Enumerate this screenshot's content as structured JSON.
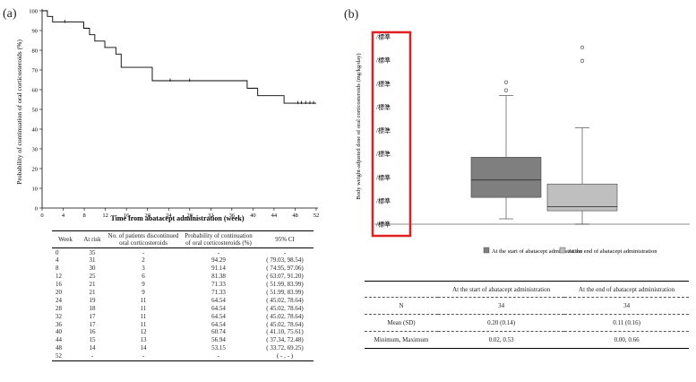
{
  "panel_a_label": "(a)",
  "panel_b_label": "(b)",
  "km_table": {
    "headers": [
      "Week",
      "At risk",
      "No. of patients discontinued oral corticosteroids",
      "Probability of continuation of oral corticosteroids (%)",
      "95% CI"
    ],
    "rows": [
      [
        "0",
        "35",
        "-",
        "-",
        "-"
      ],
      [
        "4",
        "31",
        "2",
        "94.29",
        "( 79.03, 98.54)"
      ],
      [
        "8",
        "30",
        "3",
        "91.14",
        "( 74.95, 97.06)"
      ],
      [
        "12",
        "25",
        "6",
        "81.38",
        "( 63.07, 91.20)"
      ],
      [
        "16",
        "21",
        "9",
        "71.33",
        "( 51.99, 83.99)"
      ],
      [
        "20",
        "21",
        "9",
        "71.33",
        "( 51.99, 83.99)"
      ],
      [
        "24",
        "19",
        "11",
        "64.54",
        "( 45.02, 78.64)"
      ],
      [
        "28",
        "18",
        "11",
        "64.54",
        "( 45.02, 78.64)"
      ],
      [
        "32",
        "17",
        "11",
        "64.54",
        "( 45.02, 78.64)"
      ],
      [
        "36",
        "17",
        "11",
        "64.54",
        "( 45.02, 78.64)"
      ],
      [
        "40",
        "16",
        "12",
        "60.74",
        "( 41.10, 75.61)"
      ],
      [
        "44",
        "15",
        "13",
        "56.94",
        "( 37.34, 72.48)"
      ],
      [
        "48",
        "14",
        "14",
        "53.15",
        "( 33.72, 69.25)"
      ],
      [
        "52",
        "-",
        "-",
        "-",
        "( - , - )"
      ]
    ]
  },
  "boxplot_table": {
    "headers": [
      "",
      "At the start of abatacept administration",
      "At the end of abatacept administration"
    ],
    "rows": [
      [
        "N",
        "34",
        "34"
      ],
      [
        "Mean (SD)",
        "0.20  (0.14)",
        "0.11 (0.16)"
      ],
      [
        "Minimum, Maximum",
        "0.02, 0.53",
        "0.00, 0.66"
      ]
    ]
  },
  "chart_data": [
    {
      "type": "line",
      "subtype": "kaplan-meier-step",
      "title": "",
      "xlabel": "Time from abatacept administration (week)",
      "ylabel": "Probability of continuation of oral corticosteroids (%)",
      "xlim": [
        0,
        52
      ],
      "ylim": [
        0,
        100
      ],
      "x_ticks": [
        "0",
        "4",
        "8",
        "12",
        "16",
        "20",
        "24",
        "28",
        "32",
        "36",
        "40",
        "44",
        "48",
        "52"
      ],
      "y_ticks": [
        "0",
        "10",
        "20",
        "30",
        "40",
        "50",
        "60",
        "70",
        "80",
        "90",
        "100"
      ],
      "series": [
        {
          "name": "Probability of continuation",
          "x": [
            0,
            1.0,
            2.0,
            7.9,
            9.0,
            10.0,
            11.9,
            14.0,
            15.0,
            20.9,
            38.9,
            40.9,
            45.9,
            52
          ],
          "y": [
            100,
            97.14,
            94.29,
            91.14,
            87.89,
            84.63,
            81.38,
            78.03,
            71.33,
            64.54,
            60.74,
            56.94,
            53.15,
            53.15
          ]
        }
      ],
      "censor_marks": {
        "x": [
          4.3,
          24.3,
          28.0,
          48.5,
          49.2,
          50.0,
          50.8,
          51.5
        ],
        "y": [
          94.29,
          64.54,
          64.54,
          53.15,
          53.15,
          53.15,
          53.15,
          53.15
        ]
      }
    },
    {
      "type": "box",
      "title": "",
      "xlabel": "",
      "ylabel": "Body weight-adjusted dose of oral corticosteroids (mg/kg/day)",
      "ylim": [
        0,
        0.7
      ],
      "y_ticks": [
        "/標準",
        "/標準",
        "/標準",
        "/標準",
        "/標準",
        "/標準",
        "/標準",
        "/標準",
        "/標準"
      ],
      "grid": false,
      "series": [
        {
          "name": "At the start of abatacept administration",
          "color": "#7f7f7f",
          "min": 0.02,
          "q1": 0.1,
          "median": 0.165,
          "q3": 0.25,
          "max": 0.48,
          "outliers": [
            0.53,
            0.5
          ]
        },
        {
          "name": "At the end of abatacept administration",
          "color": "#bfbfbf",
          "min": 0.0,
          "q1": 0.05,
          "median": 0.065,
          "q3": 0.15,
          "max": 0.36,
          "outliers": [
            0.66,
            0.61
          ]
        }
      ]
    }
  ]
}
